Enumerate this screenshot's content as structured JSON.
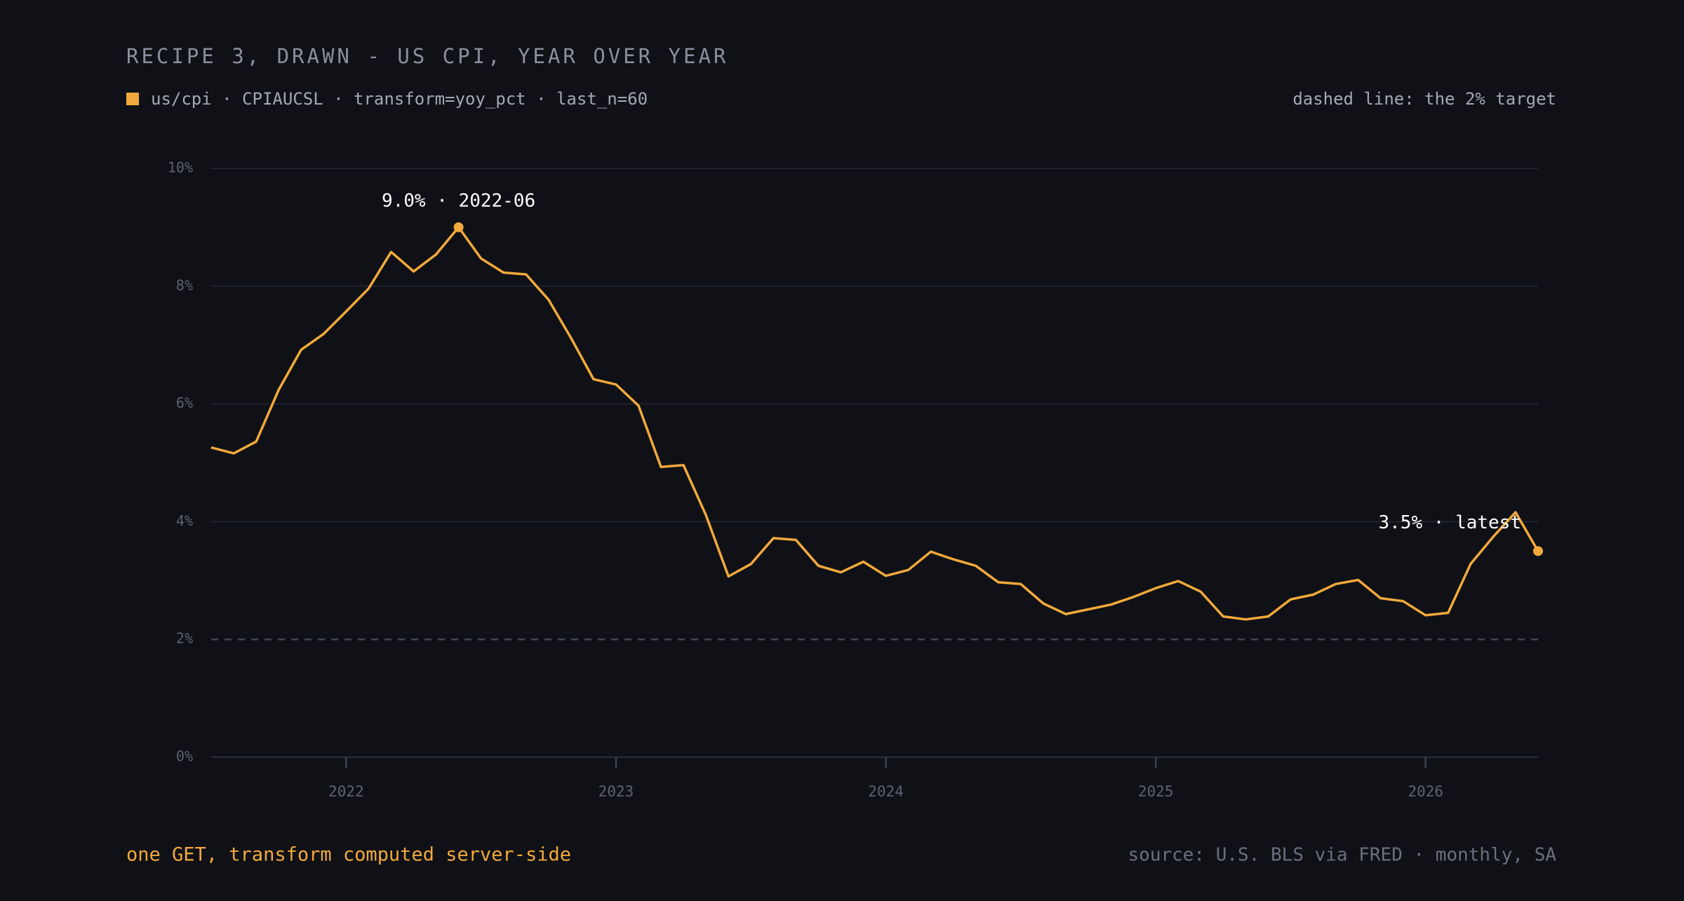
{
  "chart_data": {
    "type": "line",
    "title": "RECIPE 3, DRAWN - US CPI, YEAR OVER YEAR",
    "note": "dashed line: the 2% target",
    "footer": "one GET, transform computed server-side",
    "source": "source: U.S. BLS via FRED · monthly, SA",
    "annotations": [
      "9.0% · 2022-06",
      "3.5% · latest"
    ],
    "x": [
      "2021-07",
      "2021-08",
      "2021-09",
      "2021-10",
      "2021-11",
      "2021-12",
      "2022-01",
      "2022-02",
      "2022-03",
      "2022-04",
      "2022-05",
      "2022-06",
      "2022-07",
      "2022-08",
      "2022-09",
      "2022-10",
      "2022-11",
      "2022-12",
      "2023-01",
      "2023-02",
      "2023-03",
      "2023-04",
      "2023-05",
      "2023-06",
      "2023-07",
      "2023-08",
      "2023-09",
      "2023-10",
      "2023-11",
      "2023-12",
      "2024-01",
      "2024-02",
      "2024-03",
      "2024-04",
      "2024-05",
      "2024-06",
      "2024-07",
      "2024-08",
      "2024-09",
      "2024-10",
      "2024-11",
      "2024-12",
      "2025-01",
      "2025-02",
      "2025-03",
      "2025-04",
      "2025-05",
      "2025-06",
      "2025-07",
      "2025-08",
      "2025-09",
      "2025-10",
      "2025-11",
      "2025-12",
      "2026-01",
      "2026-02",
      "2026-03",
      "2026-04",
      "2026-05",
      "2026-06"
    ],
    "series": [
      {
        "name": "us/cpi · CPIAUCSL · transform=yoy_pct · last_n=60",
        "color": "#f2a93b",
        "values": [
          5.26,
          5.16,
          5.36,
          6.24,
          6.92,
          7.19,
          7.57,
          7.96,
          8.58,
          8.25,
          8.54,
          9.0,
          8.47,
          8.23,
          8.2,
          7.77,
          7.12,
          6.42,
          6.33,
          5.97,
          4.93,
          4.96,
          4.11,
          3.07,
          3.28,
          3.72,
          3.69,
          3.25,
          3.14,
          3.32,
          3.08,
          3.18,
          3.49,
          3.36,
          3.25,
          2.97,
          2.94,
          2.61,
          2.43,
          2.51,
          2.59,
          2.72,
          2.87,
          2.99,
          2.81,
          2.39,
          2.34,
          2.39,
          2.68,
          2.76,
          2.94,
          3.01,
          2.7,
          2.65,
          2.41,
          2.45,
          3.28,
          3.74,
          4.16,
          3.5
        ]
      }
    ],
    "xlim": [
      "2021-07",
      "2026-06"
    ],
    "xticks": [
      "2022",
      "2023",
      "2024",
      "2025",
      "2026"
    ],
    "ylim": [
      0,
      10
    ],
    "yticks": [
      {
        "value": 0,
        "label": "0%"
      },
      {
        "value": 2,
        "label": "2%"
      },
      {
        "value": 4,
        "label": "4%"
      },
      {
        "value": 6,
        "label": "6%"
      },
      {
        "value": 8,
        "label": "8%"
      },
      {
        "value": 10,
        "label": "10%"
      }
    ],
    "reference_line": 2,
    "grid": true
  }
}
